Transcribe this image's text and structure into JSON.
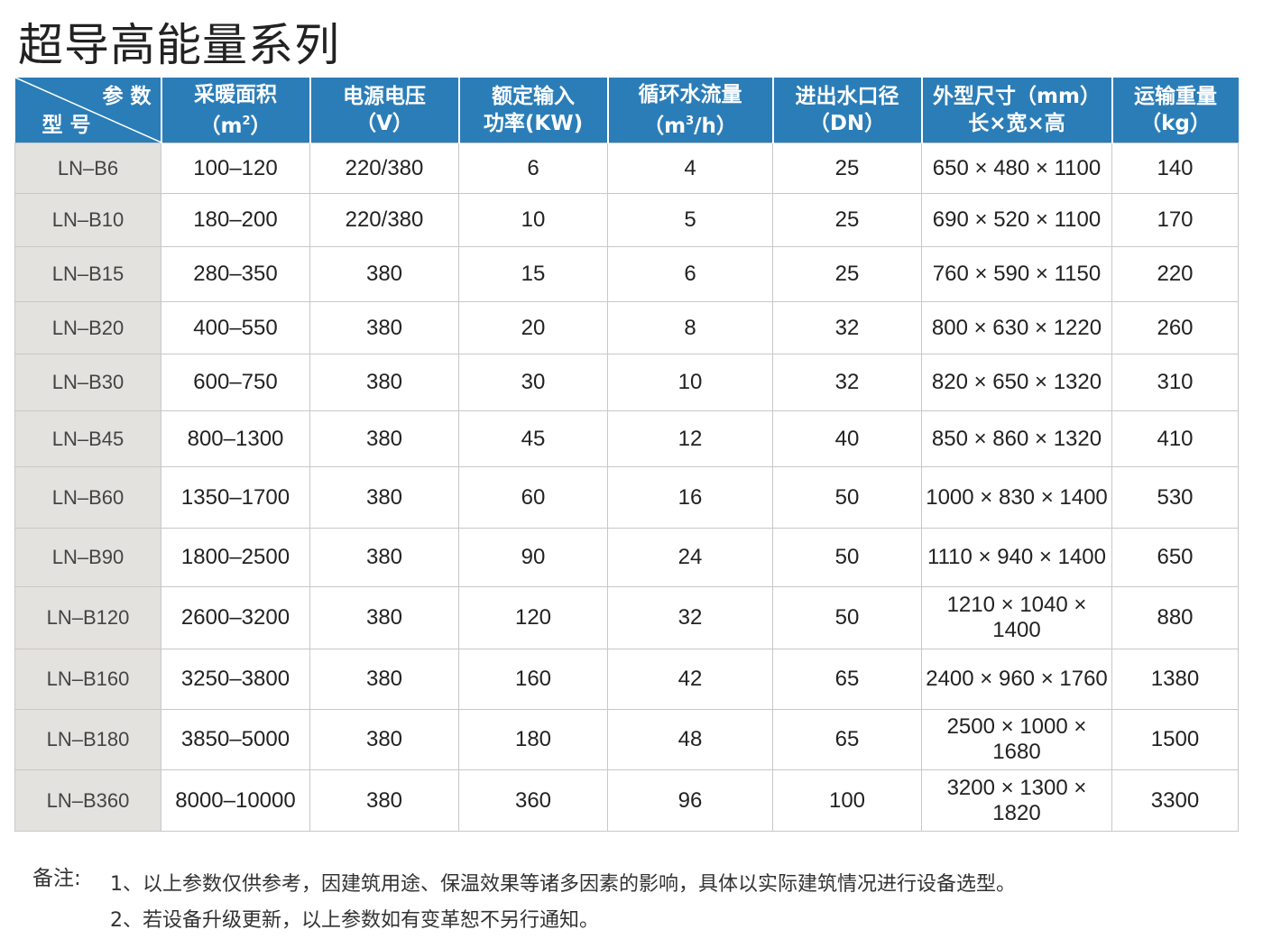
{
  "title": "超导高能量系列",
  "header": {
    "corner_top": "参 数",
    "corner_bottom": "型 号",
    "area_1": "采暖面积",
    "area_2": "（m",
    "area_sup": "2",
    "area_3": "）",
    "voltage_1": "电源电压",
    "voltage_2": "（V）",
    "power_1": "额定输入",
    "power_2": "功率(KW)",
    "flow_1": "循环水流量",
    "flow_2": "（m",
    "flow_sup": "3",
    "flow_3": "/h）",
    "dn_1": "进出水口径",
    "dn_2": "（DN）",
    "size_1": "外型尺寸（mm）",
    "size_2": "长×宽×高",
    "weight_1": "运输重量",
    "weight_2": "（kg）"
  },
  "rows": [
    {
      "model": "LN–B6",
      "area": "100–120",
      "voltage": "220/380",
      "power": "6",
      "flow": "4",
      "dn": "25",
      "size": "650 × 480 × 1100",
      "weight": "140"
    },
    {
      "model": "LN–B10",
      "area": "180–200",
      "voltage": "220/380",
      "power": "10",
      "flow": "5",
      "dn": "25",
      "size": "690 × 520 × 1100",
      "weight": "170"
    },
    {
      "model": "LN–B15",
      "area": "280–350",
      "voltage": "380",
      "power": "15",
      "flow": "6",
      "dn": "25",
      "size": "760 × 590 × 1150",
      "weight": "220"
    },
    {
      "model": "LN–B20",
      "area": "400–550",
      "voltage": "380",
      "power": "20",
      "flow": "8",
      "dn": "32",
      "size": "800 × 630 × 1220",
      "weight": "260"
    },
    {
      "model": "LN–B30",
      "area": "600–750",
      "voltage": "380",
      "power": "30",
      "flow": "10",
      "dn": "32",
      "size": "820 × 650 × 1320",
      "weight": "310"
    },
    {
      "model": "LN–B45",
      "area": "800–1300",
      "voltage": "380",
      "power": "45",
      "flow": "12",
      "dn": "40",
      "size": "850 × 860 × 1320",
      "weight": "410"
    },
    {
      "model": "LN–B60",
      "area": "1350–1700",
      "voltage": "380",
      "power": "60",
      "flow": "16",
      "dn": "50",
      "size": "1000 × 830 × 1400",
      "weight": "530"
    },
    {
      "model": "LN–B90",
      "area": "1800–2500",
      "voltage": "380",
      "power": "90",
      "flow": "24",
      "dn": "50",
      "size": "1110 × 940 × 1400",
      "weight": "650"
    },
    {
      "model": "LN–B120",
      "area": "2600–3200",
      "voltage": "380",
      "power": "120",
      "flow": "32",
      "dn": "50",
      "size": "1210 × 1040 × 1400",
      "weight": "880"
    },
    {
      "model": "LN–B160",
      "area": "3250–3800",
      "voltage": "380",
      "power": "160",
      "flow": "42",
      "dn": "65",
      "size": "2400 × 960 × 1760",
      "weight": "1380"
    },
    {
      "model": "LN–B180",
      "area": "3850–5000",
      "voltage": "380",
      "power": "180",
      "flow": "48",
      "dn": "65",
      "size": "2500 × 1000 × 1680",
      "weight": "1500"
    },
    {
      "model": "LN–B360",
      "area": "8000–10000",
      "voltage": "380",
      "power": "360",
      "flow": "96",
      "dn": "100",
      "size": "3200 × 1300 × 1820",
      "weight": "3300"
    }
  ],
  "notes": {
    "label": "备注:",
    "line1": "1、以上参数仅供参考，因建筑用途、保温效果等诸多因素的影响，具体以实际建筑情况进行设备选型。",
    "line2": "2、若设备升级更新，以上参数如有变革恕不另行通知。"
  },
  "colors": {
    "header_bg": "#2b7db8",
    "model_bg": "#e4e2de",
    "grid": "#c8c8c8"
  }
}
